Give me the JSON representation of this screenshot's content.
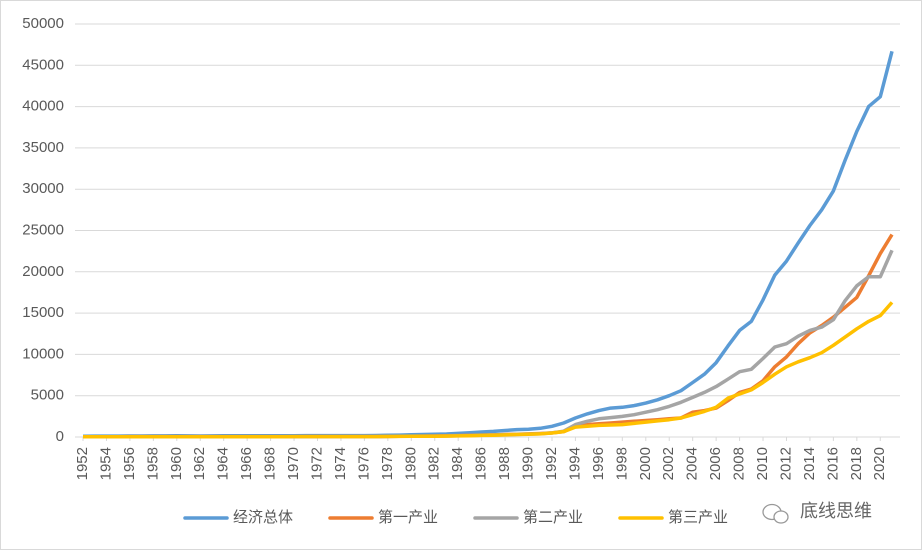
{
  "chart_data": {
    "type": "line",
    "x": [
      1952,
      1953,
      1954,
      1955,
      1956,
      1957,
      1958,
      1959,
      1960,
      1961,
      1962,
      1963,
      1964,
      1965,
      1966,
      1967,
      1968,
      1969,
      1970,
      1971,
      1972,
      1973,
      1974,
      1975,
      1976,
      1977,
      1978,
      1979,
      1980,
      1981,
      1982,
      1983,
      1984,
      1985,
      1986,
      1987,
      1988,
      1989,
      1990,
      1991,
      1992,
      1993,
      1994,
      1995,
      1996,
      1997,
      1998,
      1999,
      2000,
      2001,
      2002,
      2003,
      2004,
      2005,
      2006,
      2007,
      2008,
      2009,
      2010,
      2011,
      2012,
      2013,
      2014,
      2015,
      2016,
      2017,
      2018,
      2019,
      2020,
      2021
    ],
    "xlim": [
      1952,
      2021
    ],
    "xticks": [
      1952,
      1954,
      1956,
      1958,
      1960,
      1962,
      1964,
      1966,
      1968,
      1970,
      1972,
      1974,
      1976,
      1978,
      1980,
      1982,
      1984,
      1986,
      1988,
      1990,
      1992,
      1994,
      1996,
      1998,
      2000,
      2002,
      2004,
      2006,
      2008,
      2010,
      2012,
      2014,
      2016,
      2018,
      2020
    ],
    "ylim": [
      0,
      50000
    ],
    "yticks": [
      0,
      5000,
      10000,
      15000,
      20000,
      25000,
      30000,
      35000,
      40000,
      45000,
      50000
    ],
    "grid": true,
    "legend": "bottom",
    "watermark": "底线思维",
    "series": [
      {
        "name": "经济总体",
        "color": "#5b9bd5",
        "values": [
          100,
          105,
          110,
          115,
          120,
          125,
          130,
          135,
          140,
          130,
          125,
          130,
          140,
          150,
          155,
          150,
          150,
          155,
          160,
          165,
          165,
          170,
          170,
          175,
          175,
          180,
          200,
          230,
          270,
          300,
          330,
          360,
          430,
          520,
          600,
          680,
          790,
          900,
          950,
          1050,
          1300,
          1700,
          2300,
          2800,
          3200,
          3500,
          3600,
          3800,
          4100,
          4500,
          5000,
          5600,
          6600,
          7600,
          9000,
          11000,
          12900,
          14000,
          16600,
          19600,
          21300,
          23500,
          25600,
          27500,
          29800,
          33500,
          37000,
          40000,
          41200,
          46700
        ]
      },
      {
        "name": "第一产业",
        "color": "#ed7d31",
        "values": [
          40,
          40,
          42,
          42,
          44,
          45,
          46,
          47,
          48,
          45,
          44,
          45,
          48,
          50,
          52,
          50,
          50,
          52,
          54,
          56,
          56,
          58,
          58,
          60,
          60,
          62,
          70,
          85,
          100,
          110,
          125,
          140,
          165,
          200,
          230,
          260,
          300,
          340,
          380,
          420,
          500,
          650,
          1300,
          1500,
          1600,
          1700,
          1800,
          1900,
          2000,
          2100,
          2200,
          2300,
          3000,
          3200,
          3500,
          4400,
          5400,
          5800,
          6800,
          8500,
          9700,
          11300,
          12600,
          13500,
          14500,
          15700,
          16900,
          19500,
          22200,
          24500
        ]
      },
      {
        "name": "第二产业",
        "color": "#a5a5a5",
        "values": [
          35,
          37,
          38,
          40,
          42,
          43,
          45,
          46,
          47,
          44,
          43,
          44,
          46,
          48,
          50,
          48,
          48,
          50,
          52,
          54,
          54,
          56,
          56,
          58,
          58,
          60,
          68,
          80,
          90,
          100,
          110,
          120,
          150,
          180,
          210,
          240,
          280,
          320,
          350,
          400,
          500,
          700,
          1500,
          1900,
          2200,
          2350,
          2500,
          2700,
          3000,
          3300,
          3700,
          4200,
          4800,
          5400,
          6100,
          7000,
          7900,
          8200,
          9500,
          10900,
          11300,
          12200,
          12900,
          13300,
          14200,
          16500,
          18300,
          19400,
          19400,
          22600
        ]
      },
      {
        "name": "第三产业",
        "color": "#ffc000",
        "values": [
          30,
          31,
          32,
          33,
          34,
          35,
          36,
          37,
          38,
          36,
          35,
          36,
          38,
          40,
          42,
          40,
          40,
          42,
          44,
          46,
          46,
          48,
          48,
          50,
          50,
          52,
          60,
          70,
          80,
          90,
          100,
          110,
          130,
          160,
          190,
          220,
          260,
          300,
          330,
          380,
          480,
          650,
          1200,
          1300,
          1400,
          1450,
          1500,
          1650,
          1800,
          1950,
          2100,
          2300,
          2700,
          3100,
          3600,
          4700,
          5200,
          5700,
          6600,
          7600,
          8500,
          9100,
          9600,
          10200,
          11100,
          12100,
          13100,
          14000,
          14700,
          16300
        ]
      }
    ]
  }
}
